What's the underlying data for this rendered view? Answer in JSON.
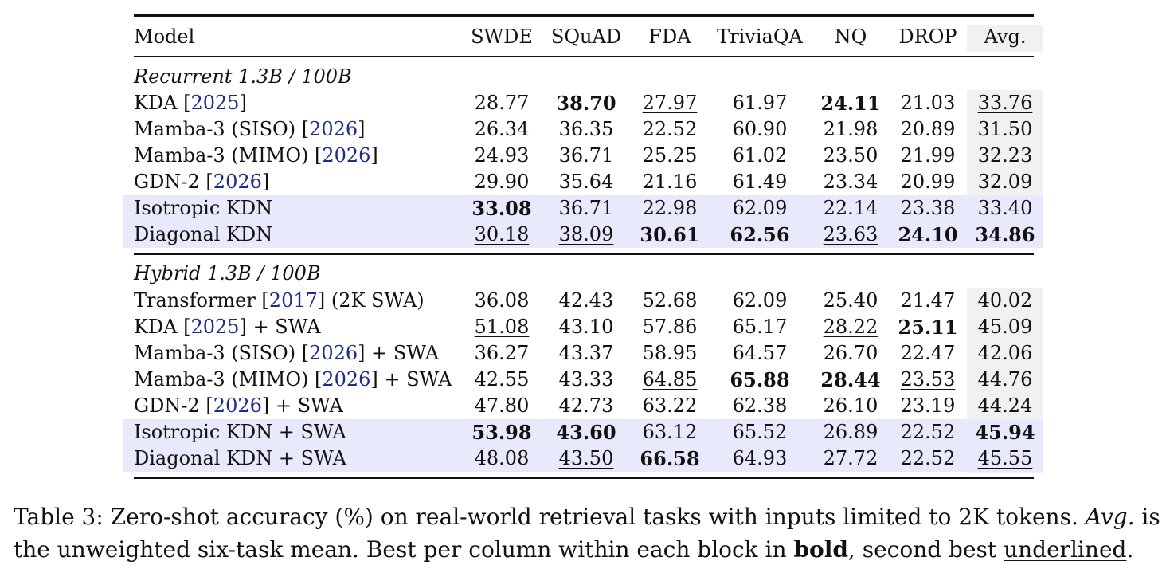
{
  "table": {
    "headers": [
      "Model",
      "SWDE",
      "SQuAD",
      "FDA",
      "TriviaQA",
      "NQ",
      "DROP",
      "Avg."
    ],
    "blocks": [
      {
        "title": "Recurrent 1.3B / 100B",
        "rows": [
          {
            "model": [
              "KDA [",
              "2025",
              "]"
            ],
            "values": [
              "28.77",
              "38.70",
              "27.97",
              "61.97",
              "24.11",
              "21.03",
              "33.76"
            ],
            "bold": [
              1,
              4
            ],
            "under": [
              2,
              6
            ],
            "highlight": false
          },
          {
            "model": [
              "Mamba-3 (SISO) [",
              "2026",
              "]"
            ],
            "values": [
              "26.34",
              "36.35",
              "22.52",
              "60.90",
              "21.98",
              "20.89",
              "31.50"
            ],
            "bold": [],
            "under": [],
            "highlight": false
          },
          {
            "model": [
              "Mamba-3 (MIMO) [",
              "2026",
              "]"
            ],
            "values": [
              "24.93",
              "36.71",
              "25.25",
              "61.02",
              "23.50",
              "21.99",
              "32.23"
            ],
            "bold": [],
            "under": [],
            "highlight": false
          },
          {
            "model": [
              "GDN-2 [",
              "2026",
              "]"
            ],
            "values": [
              "29.90",
              "35.64",
              "21.16",
              "61.49",
              "23.34",
              "20.99",
              "32.09"
            ],
            "bold": [],
            "under": [],
            "highlight": false
          },
          {
            "model": [
              "Isotropic KDN",
              "",
              ""
            ],
            "values": [
              "33.08",
              "36.71",
              "22.98",
              "62.09",
              "22.14",
              "23.38",
              "33.40"
            ],
            "bold": [
              0
            ],
            "under": [
              3,
              5
            ],
            "highlight": true
          },
          {
            "model": [
              "Diagonal KDN",
              "",
              ""
            ],
            "values": [
              "30.18",
              "38.09",
              "30.61",
              "62.56",
              "23.63",
              "24.10",
              "34.86"
            ],
            "bold": [
              2,
              3,
              5,
              6
            ],
            "under": [
              0,
              1,
              4
            ],
            "highlight": true
          }
        ]
      },
      {
        "title": "Hybrid 1.3B / 100B",
        "rows": [
          {
            "model": [
              "Transformer [",
              "2017",
              "] (2K SWA)"
            ],
            "values": [
              "36.08",
              "42.43",
              "52.68",
              "62.09",
              "25.40",
              "21.47",
              "40.02"
            ],
            "bold": [],
            "under": [],
            "highlight": false
          },
          {
            "model": [
              "KDA [",
              "2025",
              "] + SWA"
            ],
            "values": [
              "51.08",
              "43.10",
              "57.86",
              "65.17",
              "28.22",
              "25.11",
              "45.09"
            ],
            "bold": [
              5
            ],
            "under": [
              0,
              4
            ],
            "highlight": false
          },
          {
            "model": [
              "Mamba-3 (SISO) [",
              "2026",
              "] + SWA"
            ],
            "values": [
              "36.27",
              "43.37",
              "58.95",
              "64.57",
              "26.70",
              "22.47",
              "42.06"
            ],
            "bold": [],
            "under": [],
            "highlight": false
          },
          {
            "model": [
              "Mamba-3 (MIMO) [",
              "2026",
              "] + SWA"
            ],
            "values": [
              "42.55",
              "43.33",
              "64.85",
              "65.88",
              "28.44",
              "23.53",
              "44.76"
            ],
            "bold": [
              3,
              4
            ],
            "under": [
              2,
              5
            ],
            "highlight": false
          },
          {
            "model": [
              "GDN-2 [",
              "2026",
              "] + SWA"
            ],
            "values": [
              "47.80",
              "42.73",
              "63.22",
              "62.38",
              "26.10",
              "23.19",
              "44.24"
            ],
            "bold": [],
            "under": [],
            "highlight": false
          },
          {
            "model": [
              "Isotropic KDN + SWA",
              "",
              ""
            ],
            "values": [
              "53.98",
              "43.60",
              "63.12",
              "65.52",
              "26.89",
              "22.52",
              "45.94"
            ],
            "bold": [
              0,
              1,
              6
            ],
            "under": [
              3
            ],
            "highlight": true
          },
          {
            "model": [
              "Diagonal KDN + SWA",
              "",
              ""
            ],
            "values": [
              "48.08",
              "43.50",
              "66.58",
              "64.93",
              "27.72",
              "22.52",
              "45.55"
            ],
            "bold": [
              2
            ],
            "under": [
              1,
              6
            ],
            "highlight": true
          }
        ]
      }
    ]
  },
  "caption": {
    "p1": "Table 3: Zero-shot accuracy (%) on real-world retrieval tasks with inputs limited to 2K tokens. ",
    "avg": "Avg.",
    "p2": " is the unweighted six-task mean. Best per column within each block in ",
    "bold": "bold",
    "p3": ", second best ",
    "underlined": "underlined",
    "p4": "."
  },
  "colors": {
    "highlight_row": "#e8eafb",
    "avg_column": "#f1f1f1",
    "citation": "#1b2c8a"
  }
}
